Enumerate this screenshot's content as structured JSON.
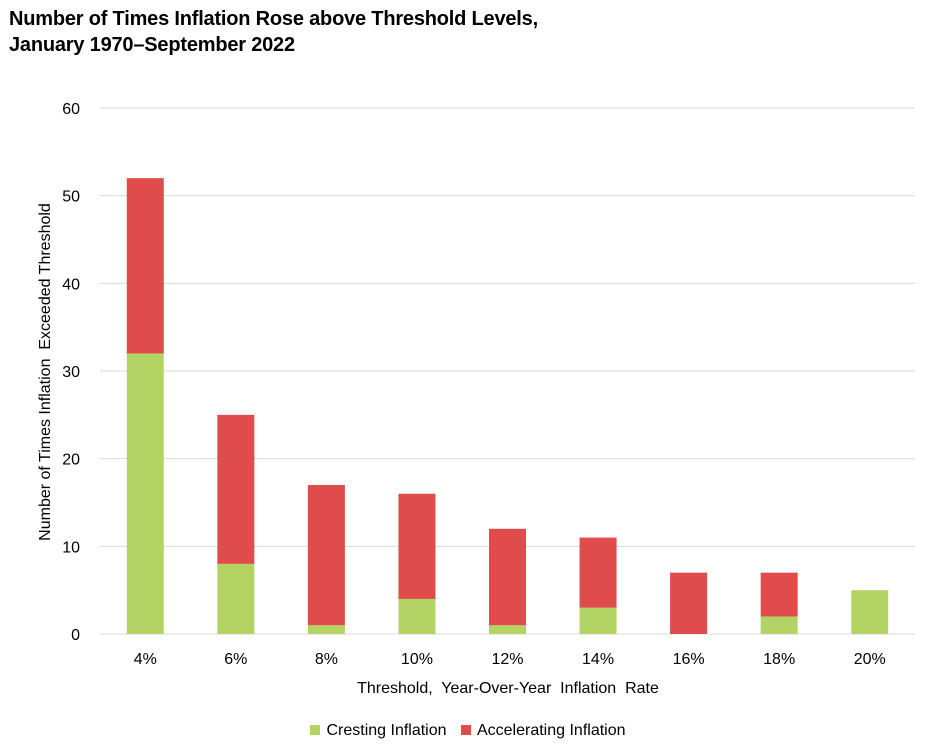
{
  "title_line1": "Number of Times Inflation Rose above Threshold Levels,",
  "title_line2": "January 1970–September 2022",
  "colors": {
    "cresting": "#b3d465",
    "accelerating": "#e04b4b",
    "grid": "#d9d9d9"
  },
  "chart_data": {
    "type": "bar",
    "stacked": true,
    "title": "Number of Times Inflation Rose above Threshold Levels, January 1970–September 2022",
    "xlabel": "Threshold,  Year-Over-Year  Inflation  Rate",
    "ylabel": "Number of Times Inflation  Exceeded Threshold",
    "categories": [
      "4%",
      "6%",
      "8%",
      "10%",
      "12%",
      "14%",
      "16%",
      "18%",
      "20%"
    ],
    "series": [
      {
        "name": "Cresting Inflation",
        "color": "#b3d465",
        "values": [
          32,
          8,
          1,
          4,
          1,
          3,
          0,
          2,
          5
        ]
      },
      {
        "name": "Accelerating Inflation",
        "color": "#e04b4b",
        "values": [
          20,
          17,
          16,
          12,
          11,
          8,
          7,
          5,
          0
        ]
      }
    ],
    "ylim": [
      0,
      60
    ],
    "yticks": [
      0,
      10,
      20,
      30,
      40,
      50,
      60
    ],
    "grid": true,
    "legend_position": "bottom"
  }
}
